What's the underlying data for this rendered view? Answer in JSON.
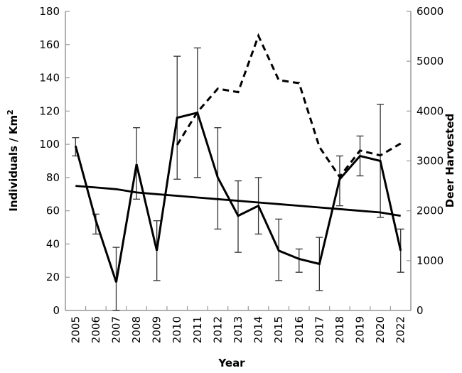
{
  "chart_data": {
    "type": "line",
    "xlabel": "Year",
    "ylabel": "Individuals / Km",
    "ylabel_superscript": "2",
    "y2label": "Deer Harvested",
    "categories": [
      "2005",
      "2006",
      "2007",
      "2008",
      "2009",
      "2010",
      "2011",
      "2012",
      "2013",
      "2014",
      "2015",
      "2016",
      "2017",
      "2018",
      "2019",
      "2020",
      "2022"
    ],
    "ylim": [
      0,
      180
    ],
    "yticks": [
      0,
      20,
      40,
      60,
      80,
      100,
      120,
      140,
      160,
      180
    ],
    "y2lim": [
      0,
      6000
    ],
    "y2ticks": [
      0,
      1000,
      2000,
      3000,
      4000,
      5000,
      6000
    ],
    "grid": false,
    "series": [
      {
        "style": "solid",
        "axis": "left",
        "values": [
          99,
          54,
          17,
          88,
          36,
          116,
          119,
          80,
          57,
          63,
          36,
          31,
          28,
          79,
          93,
          90,
          36
        ],
        "error_low": [
          93,
          46,
          0,
          67,
          18,
          79,
          80,
          49,
          35,
          46,
          18,
          23,
          12,
          63,
          81,
          56,
          23
        ],
        "error_high": [
          104,
          58,
          38,
          110,
          54,
          153,
          158,
          110,
          78,
          80,
          55,
          37,
          44,
          93,
          105,
          124,
          49
        ]
      },
      {
        "style": "solid-trend",
        "axis": "left",
        "values": [
          75,
          74,
          73,
          71,
          70,
          69,
          68,
          67,
          66,
          65,
          64,
          63,
          62,
          61,
          60,
          59,
          57
        ]
      },
      {
        "style": "dashed",
        "axis": "right",
        "values": [
          null,
          null,
          null,
          null,
          null,
          3320,
          3980,
          4450,
          4380,
          5510,
          4620,
          4560,
          3280,
          2680,
          3210,
          3110,
          3350
        ]
      }
    ],
    "colors": {
      "lines": "#000000",
      "axes": "#999999",
      "error_bars": "#333333"
    }
  }
}
